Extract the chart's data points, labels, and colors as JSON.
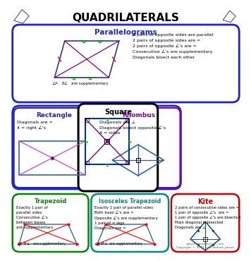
{
  "title": "QUADRILATERALS",
  "bg_color": "#ffffff",
  "title_color": "#000000",
  "title_fontsize": 11,
  "parallelogram_label": "Parallelograms",
  "parallelogram_color": "#2222cc",
  "parallelogram_text": "2 pairs of opposite sides are parallel\n2 pairs of opposite sides are =\n2 pairs of opposite ∠'s are =\nConsecutive ∠'s are supplementary\nDiagonals bisect each other",
  "rectangle_label": "Rectangle",
  "rectangle_color": "#2222cc",
  "rectangle_text": "Diagonals are =\n4 = right ∠'s",
  "square_label": "Square",
  "square_color": "#000000",
  "rhombus_label": "Rhombus",
  "rhombus_color": "#8800aa",
  "rhombus_text": "Diagonals are ⊥\nDiagonals bisect opposite ∠'s\n4 = sides",
  "trapezoid_label": "Trapezoid",
  "trapezoid_color": "#008800",
  "trapezoid_text": "Exactly 1 pair of\nparallel sides\nConsecutive ∠'s\nbetween bases\nare supplementary",
  "iso_trap_label": "Isosceles Trapezoid",
  "iso_trap_color": "#008888",
  "iso_trap_text": "Exactly 1 pair of parallel sides\nBoth base ∠'s are =\nOpposite ∠'s are supplementary\n1 pair of = legs\nDiagonals are =",
  "kite_label": "Kite",
  "kite_color": "#cc0000",
  "kite_text": "2 pairs of consecutive sides are =\n1 pair of opposite ∠'s  are =\n1 pair of opposite ∠'s are bisected\nMain diagonal is bisected\nDiagonals are ⊥",
  "footer": "www.MathIntheCore.com\nCopyright © 2014 by Elizabeth James"
}
